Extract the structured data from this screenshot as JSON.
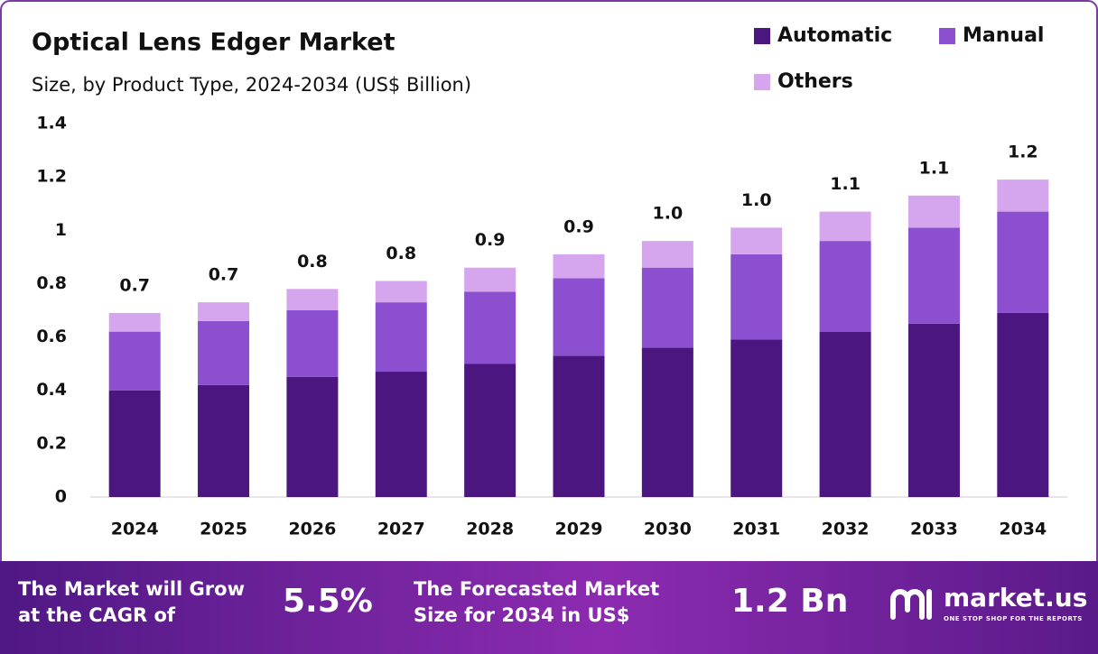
{
  "chart_data": {
    "type": "stacked_bar",
    "title": "Optical Lens Edger Market",
    "subtitle": "Size, by Product Type, 2024-2034 (US$ Billion)",
    "categories": [
      "2024",
      "2025",
      "2026",
      "2027",
      "2028",
      "2029",
      "2030",
      "2031",
      "2032",
      "2033",
      "2034"
    ],
    "series": [
      {
        "name": "Automatic",
        "color": "#4b1680",
        "values": [
          0.4,
          0.42,
          0.45,
          0.47,
          0.5,
          0.53,
          0.56,
          0.59,
          0.62,
          0.65,
          0.69
        ]
      },
      {
        "name": "Manual",
        "color": "#8b4fd0",
        "values": [
          0.22,
          0.24,
          0.25,
          0.26,
          0.27,
          0.29,
          0.3,
          0.32,
          0.34,
          0.36,
          0.38
        ]
      },
      {
        "name": "Others",
        "color": "#d5a6ee",
        "values": [
          0.07,
          0.07,
          0.08,
          0.08,
          0.09,
          0.09,
          0.1,
          0.1,
          0.11,
          0.12,
          0.12
        ]
      }
    ],
    "totals": [
      0.69,
      0.73,
      0.78,
      0.81,
      0.86,
      0.91,
      0.96,
      1.01,
      1.07,
      1.13,
      1.19
    ],
    "total_labels": [
      "0.7",
      "0.7",
      "0.8",
      "0.8",
      "0.9",
      "0.9",
      "1.0",
      "1.0",
      "1.1",
      "1.1",
      "1.2"
    ],
    "ylim": [
      0,
      1.4
    ],
    "yticks": [
      0,
      0.2,
      0.4,
      0.6,
      0.8,
      1,
      1.2,
      1.4
    ],
    "grid": false
  },
  "footer": {
    "cagr_text": "The Market will Grow at the CAGR of",
    "cagr_value": "5.5%",
    "forecast_text": "The Forecasted Market Size for 2034 in US$",
    "forecast_value": "1.2 Bn",
    "brand": "market.us",
    "tagline": "ONE STOP SHOP FOR THE REPORTS"
  }
}
